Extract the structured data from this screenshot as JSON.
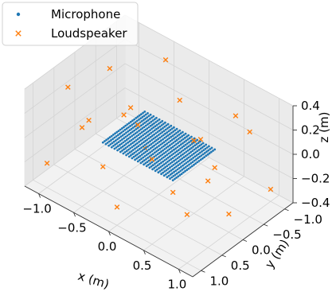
{
  "chart_data": {
    "type": "scatter",
    "projection": "3d",
    "xlabel": "x (m)",
    "ylabel": "y (m)",
    "zlabel": "z (m)",
    "xlim": [
      -1.2,
      1.2
    ],
    "ylim": [
      -1.2,
      1.2
    ],
    "zlim": [
      -0.4,
      0.4
    ],
    "xticks": [
      "−1.0",
      "−0.5",
      "0.0",
      "0.5",
      "1.0"
    ],
    "yticks": [
      "−1.0",
      "−0.5",
      "0.0",
      "0.5",
      "1.0"
    ],
    "zticks": [
      "−0.4",
      "−0.2",
      "0.0",
      "0.2",
      "0.4"
    ],
    "xtick_values": [
      -1.0,
      -0.5,
      0.0,
      0.5,
      1.0
    ],
    "ytick_values": [
      -1.0,
      -0.5,
      0.0,
      0.5,
      1.0
    ],
    "ztick_values": [
      -0.4,
      -0.2,
      0.0,
      0.2,
      0.4
    ],
    "grid": true,
    "legend_position": "top-left",
    "series": [
      {
        "name": "Microphone",
        "marker": "dot",
        "color": "#1f77b4",
        "grid": {
          "x_range": [
            -0.5,
            0.5
          ],
          "y_range": [
            -0.5,
            0.5
          ],
          "z": 0.0,
          "nx": 25,
          "ny": 25
        }
      },
      {
        "name": "Loudspeaker",
        "marker": "x",
        "color": "#ff7f0e",
        "points": [
          [
            -1.0,
            -1.0,
            -0.25
          ],
          [
            -0.5,
            -1.0,
            0.3
          ],
          [
            0.0,
            -1.0,
            -0.2
          ],
          [
            0.5,
            -1.0,
            0.15
          ],
          [
            1.0,
            -1.0,
            -0.3
          ],
          [
            -1.0,
            -0.5,
            0.2
          ],
          [
            -0.5,
            -0.5,
            -0.3
          ],
          [
            0.0,
            -0.5,
            0.25
          ],
          [
            0.5,
            -0.5,
            -0.15
          ],
          [
            1.0,
            -0.5,
            0.3
          ],
          [
            -1.0,
            0.0,
            -0.1
          ],
          [
            -0.5,
            0.0,
            0.1
          ],
          [
            0.5,
            0.0,
            0.2
          ],
          [
            1.0,
            0.0,
            -0.25
          ],
          [
            -1.0,
            0.5,
            0.3
          ],
          [
            -0.5,
            0.5,
            -0.2
          ],
          [
            0.0,
            0.5,
            0.3
          ],
          [
            0.5,
            0.5,
            -0.1
          ],
          [
            1.0,
            0.5,
            0.15
          ],
          [
            -1.0,
            1.0,
            -0.2
          ],
          [
            -0.5,
            1.0,
            0.25
          ],
          [
            0.0,
            1.0,
            -0.25
          ],
          [
            0.5,
            1.0,
            0.3
          ],
          [
            1.0,
            1.0,
            0.0
          ]
        ]
      }
    ]
  }
}
